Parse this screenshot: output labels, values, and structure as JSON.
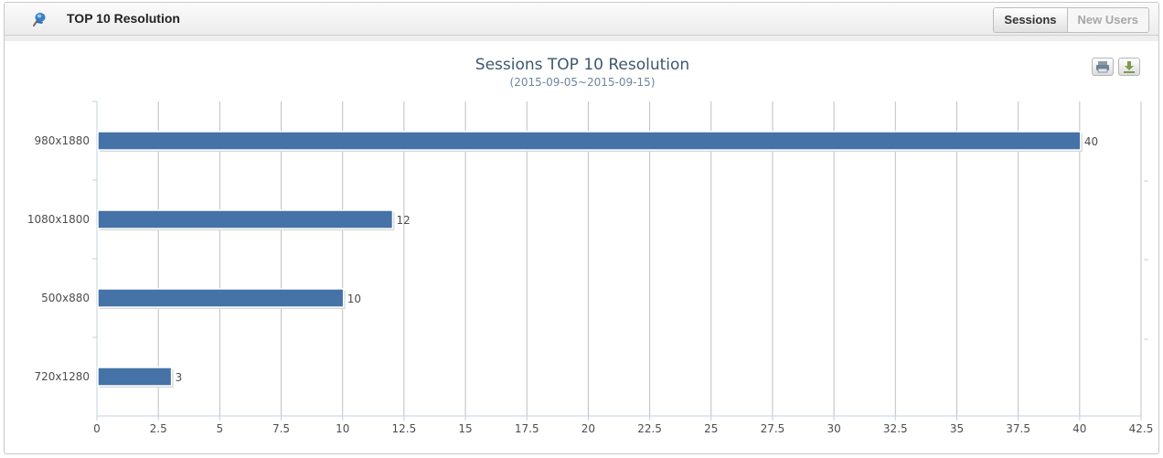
{
  "header": {
    "title": "TOP 10 Resolution",
    "icon": "pushpin-icon"
  },
  "tabs": [
    {
      "label": "Sessions",
      "active": true
    },
    {
      "label": "New Users",
      "active": false
    }
  ],
  "toolbar": {
    "print_icon": "print-icon",
    "download_icon": "download-icon"
  },
  "colors": {
    "bar": "#4572a7",
    "grid": "#c0c0c0",
    "axis": "#c0d0e0"
  },
  "chart_data": {
    "type": "bar",
    "orientation": "horizontal",
    "title": "Sessions TOP 10 Resolution",
    "subtitle": "(2015-09-05~2015-09-15)",
    "categories": [
      "980x1880",
      "1080x1800",
      "500x880",
      "720x1280"
    ],
    "values": [
      40,
      12,
      10,
      3
    ],
    "xlim": [
      0,
      42.5
    ],
    "xticks": [
      "0",
      "2.5",
      "5",
      "7.5",
      "10",
      "12.5",
      "15",
      "17.5",
      "20",
      "22.5",
      "25",
      "27.5",
      "30",
      "32.5",
      "35",
      "37.5",
      "40",
      "42.5"
    ],
    "grid": true,
    "data_labels": true,
    "legend": "none"
  }
}
